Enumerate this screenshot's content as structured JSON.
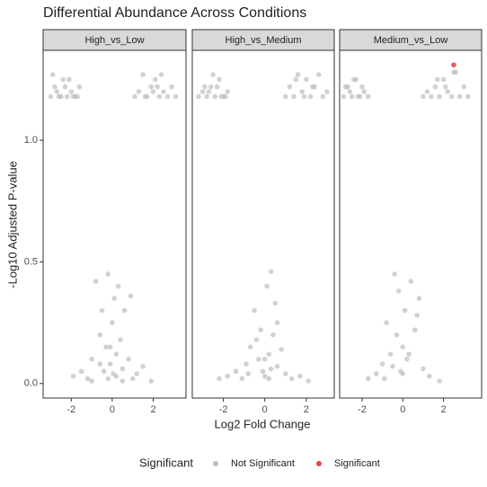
{
  "chart_data": {
    "type": "scatter",
    "title": "Differential Abundance Across Conditions",
    "xlabel": "Log2 Fold Change",
    "ylabel": "-Log10 Adjusted P-value",
    "ylim": [
      -0.06,
      1.37
    ],
    "yticks": [
      {
        "value": 0,
        "label": "0.0"
      },
      {
        "value": 0.5,
        "label": "0.5"
      },
      {
        "value": 1,
        "label": "1.0"
      }
    ],
    "legend": {
      "title": "Significant",
      "series": [
        {
          "name": "Not Significant",
          "color": "#bebebe"
        },
        {
          "name": "Significant",
          "color": "#e8474a"
        }
      ]
    },
    "facets": [
      {
        "title": "High_vs_Low",
        "xlim": [
          -3.37,
          3.6
        ],
        "xticks": [
          -2,
          0,
          2
        ],
        "series": [
          {
            "x": [
              -3.0,
              -2.8,
              -2.6,
              -2.4,
              -2.2,
              -2.0,
              -1.8,
              -1.6,
              -2.9,
              -2.5,
              -2.1,
              -1.7,
              -2.7,
              -2.3,
              -1.9,
              1.1,
              1.3,
              1.5,
              1.7,
              1.9,
              2.1,
              2.3,
              2.5,
              2.7,
              2.9,
              3.1,
              1.6,
              2.0,
              2.4,
              2.2,
              -1.9,
              -1.5,
              -1.2,
              -1.0,
              -0.8,
              -0.6,
              -0.5,
              -0.4,
              -0.3,
              -0.2,
              -0.1,
              0,
              0.1,
              0.2,
              0.3,
              0.4,
              0.5,
              0.6,
              0.8,
              1.0,
              1.2,
              1.5,
              1.9,
              -1.0,
              -0.6,
              -0.2,
              0.2,
              0.5,
              0.9,
              -0.1,
              0.05
            ],
            "values": [
              1.18,
              1.22,
              1.18,
              1.25,
              1.18,
              1.2,
              1.18,
              1.22,
              1.27,
              1.18,
              1.25,
              1.18,
              1.2,
              1.22,
              1.18,
              1.18,
              1.2,
              1.27,
              1.18,
              1.22,
              1.25,
              1.18,
              1.2,
              1.18,
              1.22,
              1.18,
              1.18,
              1.2,
              1.27,
              1.22,
              0.03,
              0.05,
              0.02,
              0.1,
              0.42,
              0.2,
              0.3,
              0.05,
              0.15,
              0.45,
              0.08,
              0.25,
              0.35,
              0.12,
              0.4,
              0.18,
              0.06,
              0.3,
              0.1,
              0.02,
              0.04,
              0.07,
              0.01,
              0.01,
              0.08,
              0.02,
              0.03,
              0.01,
              0.36,
              0.15,
              0.04
            ]
          },
          {
            "x": [],
            "values": []
          }
        ]
      },
      {
        "title": "High_vs_Medium",
        "xlim": [
          -3.5,
          3.35
        ],
        "xticks": [
          -2,
          0,
          2
        ],
        "series": [
          {
            "x": [
              -3.2,
              -3.0,
              -2.8,
              -2.6,
              -2.4,
              -2.2,
              -2.0,
              -1.8,
              -2.9,
              -2.5,
              -2.1,
              -1.9,
              -2.7,
              -2.3,
              1.0,
              1.2,
              1.4,
              1.6,
              1.8,
              2.0,
              2.2,
              2.4,
              2.6,
              2.8,
              3.0,
              1.5,
              1.9,
              2.3,
              -2.2,
              -1.8,
              -1.4,
              -1.1,
              -0.9,
              -0.7,
              -0.5,
              -0.3,
              -0.2,
              -0.1,
              0,
              0.1,
              0.2,
              0.3,
              0.4,
              0.5,
              0.6,
              0.8,
              1.0,
              1.3,
              1.7,
              2.1,
              -0.4,
              0,
              0.2,
              0.6,
              -0.8,
              0.3
            ],
            "values": [
              1.18,
              1.2,
              1.18,
              1.22,
              1.18,
              1.25,
              1.18,
              1.2,
              1.22,
              1.27,
              1.18,
              1.18,
              1.2,
              1.22,
              1.18,
              1.22,
              1.18,
              1.27,
              1.2,
              1.25,
              1.18,
              1.22,
              1.27,
              1.18,
              1.2,
              1.25,
              1.18,
              1.22,
              0.02,
              0.03,
              0.05,
              0.02,
              0.08,
              0.15,
              0.3,
              0.1,
              0.22,
              0.05,
              0.03,
              0.4,
              0.12,
              0.46,
              0.2,
              0.33,
              0.07,
              0.14,
              0.04,
              0.02,
              0.03,
              0.01,
              0.18,
              0.1,
              0.02,
              0.25,
              0.04,
              0.06
            ]
          },
          {
            "x": [],
            "values": []
          }
        ]
      },
      {
        "title": "Medium_vs_Low",
        "xlim": [
          -3.1,
          3.87
        ],
        "xticks": [
          -2,
          0,
          2
        ],
        "series": [
          {
            "x": [
              -2.9,
              -2.7,
              -2.5,
              -2.3,
              -2.1,
              -1.9,
              -1.7,
              -2.8,
              -2.4,
              -2.0,
              -2.6,
              -2.2,
              1.0,
              1.2,
              1.4,
              1.6,
              1.8,
              2.0,
              2.2,
              2.4,
              2.6,
              2.8,
              3.0,
              3.2,
              1.7,
              2.1,
              2.5,
              -1.7,
              -1.3,
              -1.0,
              -0.8,
              -0.6,
              -0.4,
              -0.3,
              -0.2,
              -0.1,
              0,
              0.1,
              0.2,
              0.4,
              0.6,
              0.8,
              1.0,
              1.3,
              1.8,
              -0.5,
              0,
              0.3,
              0.7,
              -0.9
            ],
            "values": [
              1.18,
              1.22,
              1.18,
              1.25,
              1.18,
              1.2,
              1.18,
              1.22,
              1.25,
              1.22,
              1.2,
              1.18,
              1.18,
              1.2,
              1.18,
              1.22,
              1.18,
              1.25,
              1.2,
              1.18,
              1.28,
              1.18,
              1.22,
              1.18,
              1.25,
              1.22,
              1.28,
              0.02,
              0.04,
              0.08,
              0.25,
              0.12,
              0.45,
              0.2,
              0.38,
              0.05,
              0.15,
              0.3,
              0.1,
              0.42,
              0.22,
              0.35,
              0.06,
              0.03,
              0.01,
              0.07,
              0.04,
              0.12,
              0.28,
              0.02
            ]
          },
          {
            "x": [
              2.5
            ],
            "values": [
              1.31
            ]
          }
        ]
      }
    ]
  }
}
